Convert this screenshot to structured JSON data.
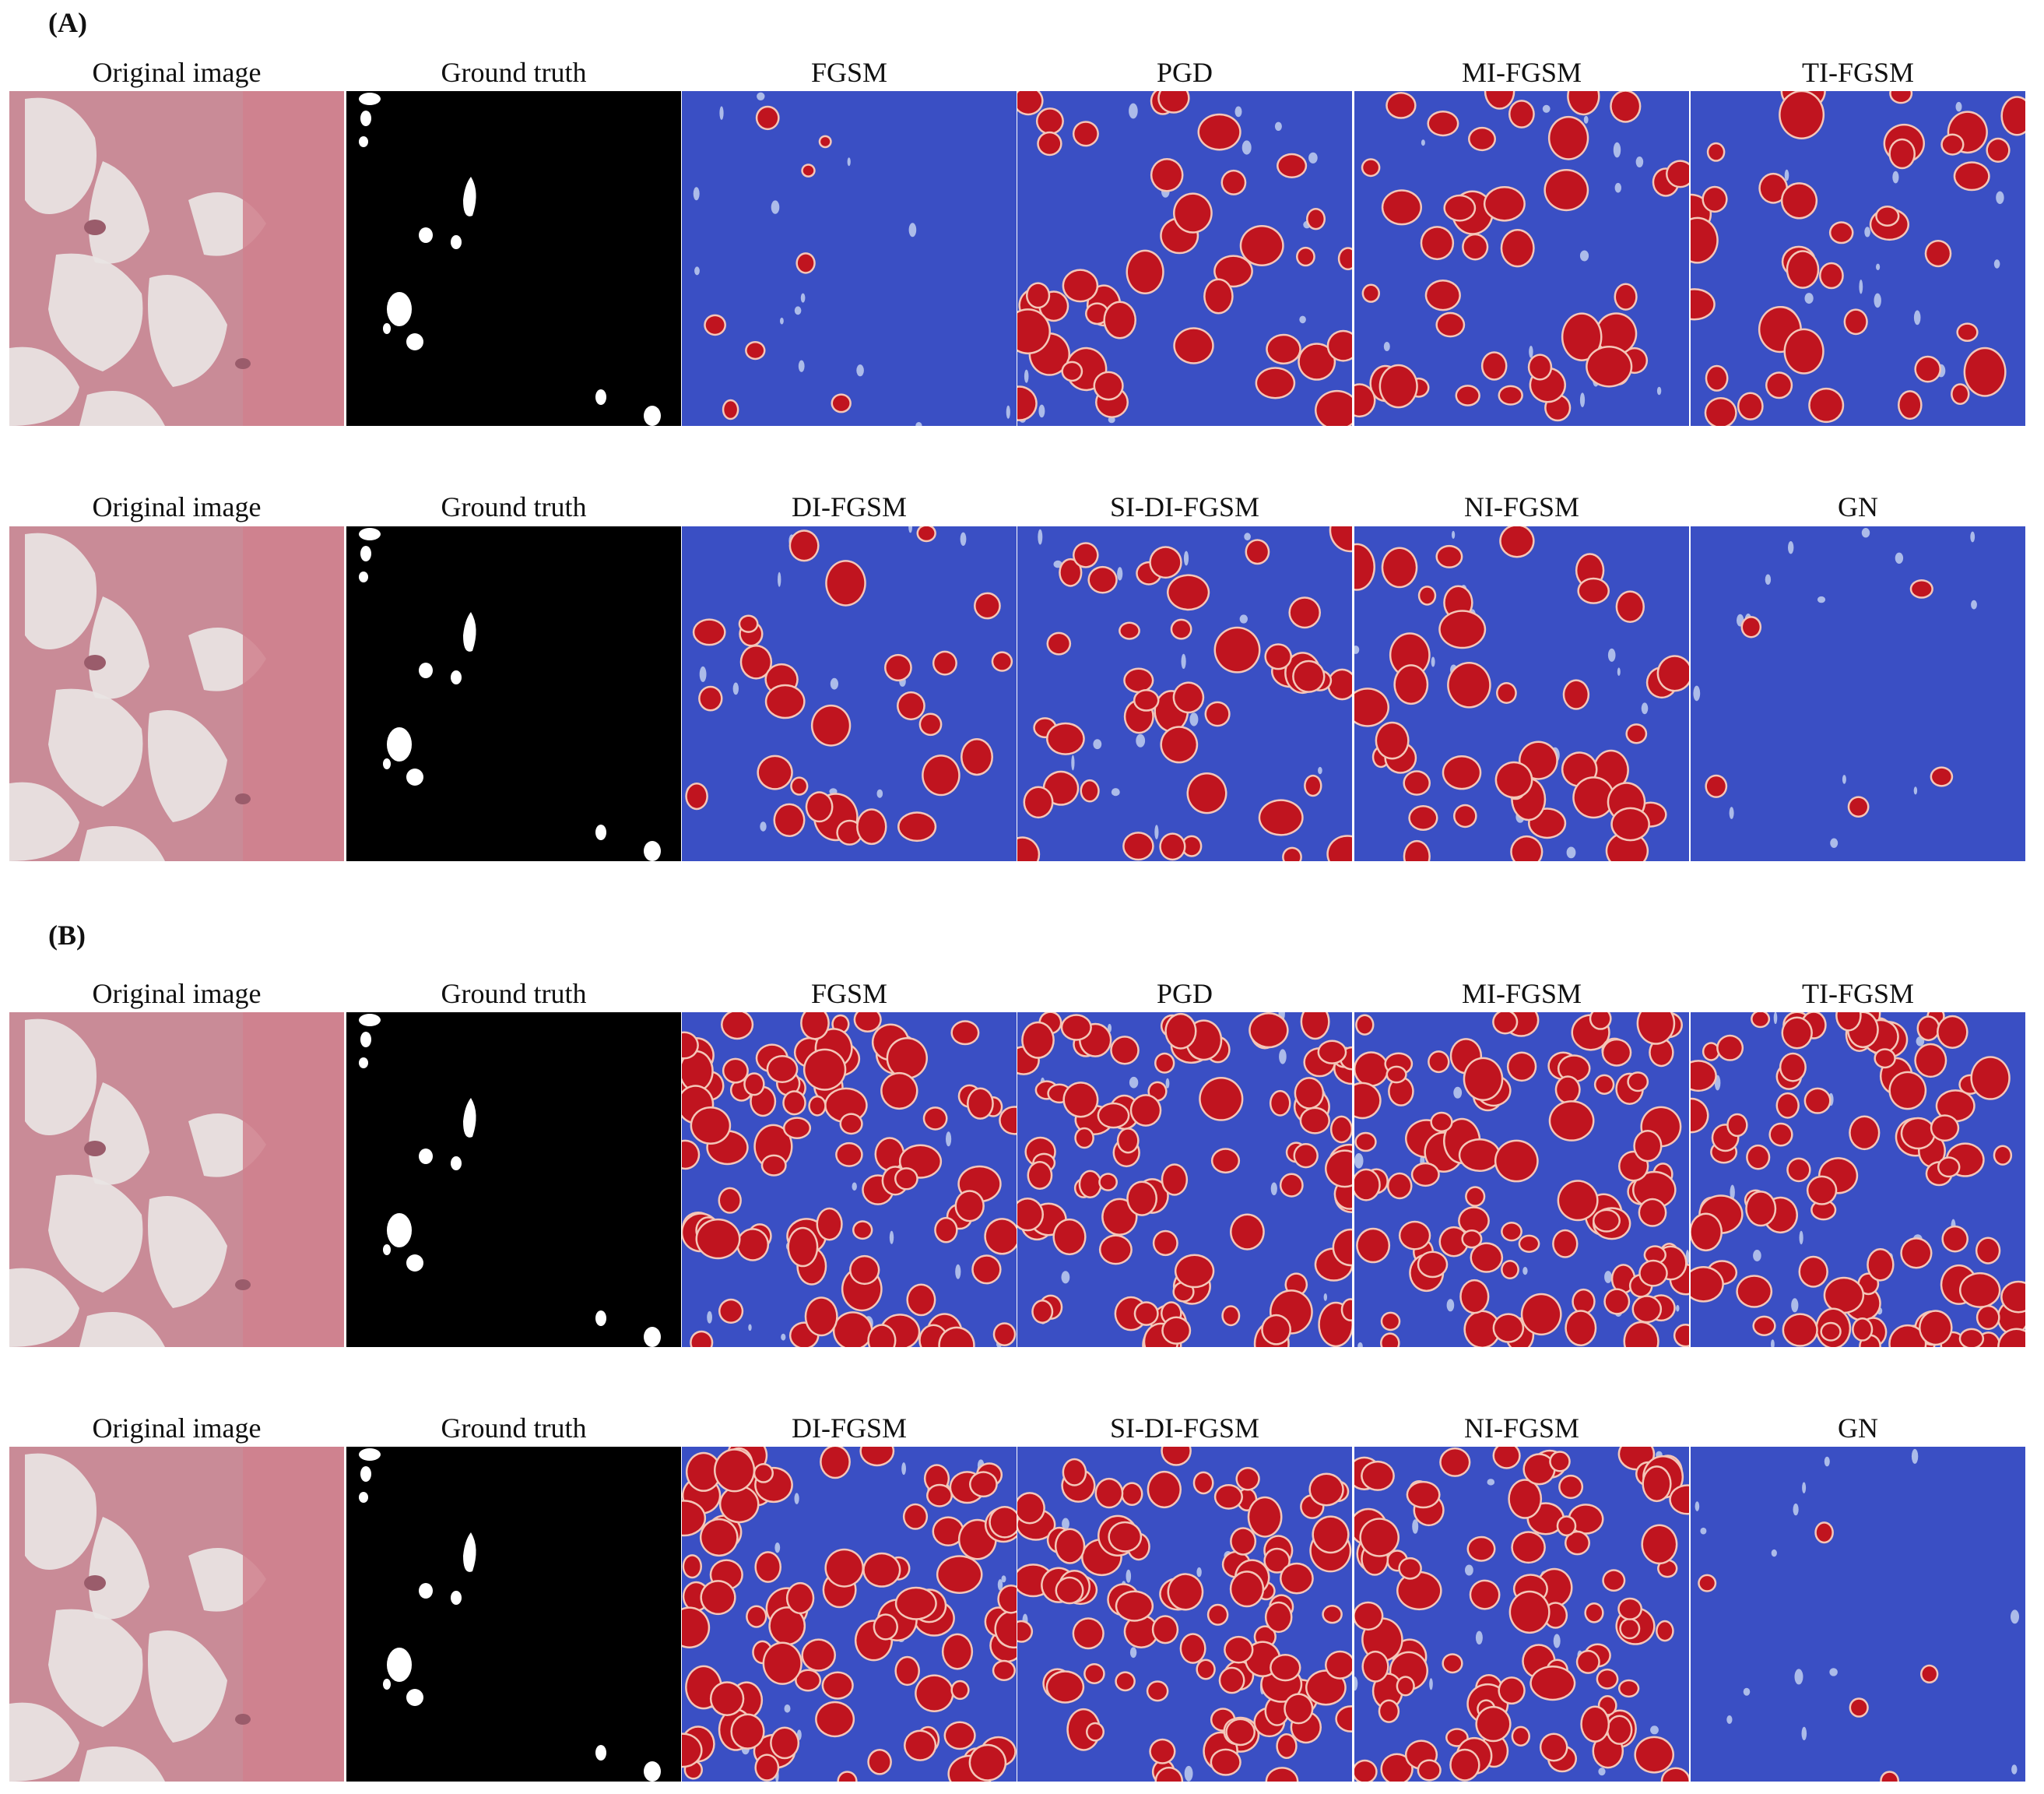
{
  "figure": {
    "sections": [
      {
        "label": "(A)",
        "rows": [
          {
            "titles": [
              "Original image",
              "Ground truth",
              "FGSM",
              "PGD",
              "MI-FGSM",
              "TI-FGSM"
            ],
            "densities": [
              0,
              0,
              8,
              40,
              40,
              38
            ]
          },
          {
            "titles": [
              "Original image",
              "Ground truth",
              "DI-FGSM",
              "SI-DI-FGSM",
              "NI-FGSM",
              "GN"
            ],
            "densities": [
              0,
              0,
              28,
              40,
              40,
              5
            ]
          }
        ]
      },
      {
        "label": "(B)",
        "rows": [
          {
            "titles": [
              "Original image",
              "Ground truth",
              "FGSM",
              "PGD",
              "MI-FGSM",
              "TI-FGSM"
            ],
            "densities": [
              0,
              0,
              85,
              85,
              85,
              85
            ]
          },
          {
            "titles": [
              "Original image",
              "Ground truth",
              "DI-FGSM",
              "SI-DI-FGSM",
              "NI-FGSM",
              "GN"
            ],
            "densities": [
              0,
              0,
              85,
              85,
              85,
              5
            ]
          }
        ]
      }
    ],
    "colors": {
      "heatmap_background": "#3a4fc4",
      "heatmap_blob": "#c0141f",
      "heatmap_edge": "#f4c6b8",
      "ground_truth_background": "#000000",
      "ground_truth_mask": "#ffffff",
      "tissue_base": "#c98b97",
      "tissue_light": "#e9e4e3"
    }
  }
}
